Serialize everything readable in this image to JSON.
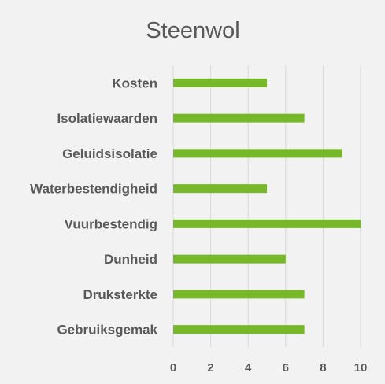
{
  "chart_data": {
    "type": "bar",
    "orientation": "horizontal",
    "title": "Steenwol",
    "categories": [
      "Kosten",
      "Isolatiewaarden",
      "Geluidsisolatie",
      "Waterbestendigheid",
      "Vuurbestendig",
      "Dunheid",
      "Druksterkte",
      "Gebruiksgemak"
    ],
    "values": [
      5,
      7,
      9,
      5,
      10,
      6,
      7,
      7
    ],
    "xlim": [
      0,
      10
    ],
    "xticks": [
      0,
      2,
      4,
      6,
      8,
      10
    ],
    "grid": true,
    "bar_color": "#77b82a",
    "legend": "none"
  }
}
